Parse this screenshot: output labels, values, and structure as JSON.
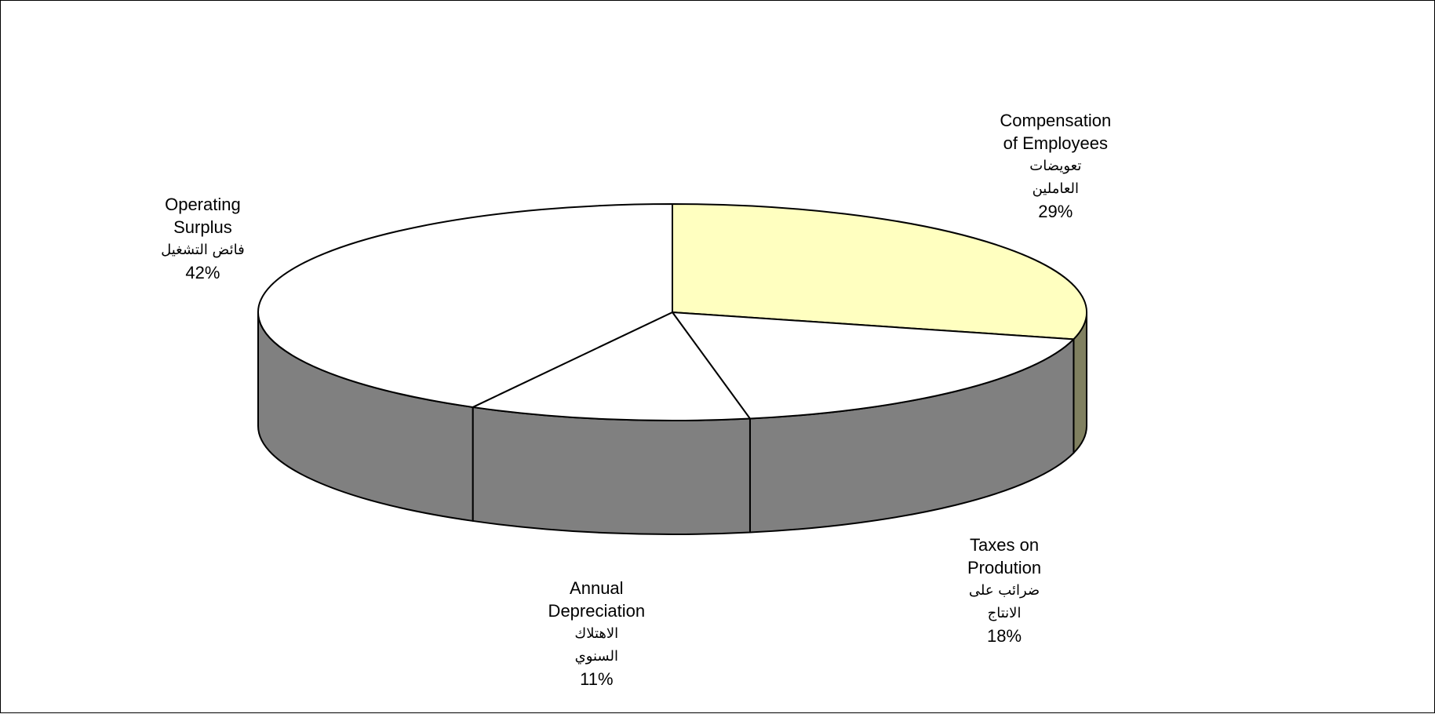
{
  "chart_data": {
    "type": "pie",
    "style": "3d",
    "title": "",
    "categories": [
      "Compensation of Employees",
      "Taxes on Prodution",
      "Annual Depreciation",
      "Operating Surplus"
    ],
    "values": [
      29,
      18,
      11,
      42
    ],
    "unit": "%",
    "slices": [
      {
        "name_en_lines": [
          "Compensation",
          "of Employees"
        ],
        "name_ar_lines": [
          "تعويضات",
          "العاملين"
        ],
        "value": 29,
        "value_label": "29%",
        "color": "#FFFFC0",
        "side_color": "#808060"
      },
      {
        "name_en_lines": [
          "Taxes on",
          "Prodution"
        ],
        "name_ar_lines": [
          "ضرائب على",
          "الانتاج"
        ],
        "value": 18,
        "value_label": "18%",
        "color": "#FFFFFF",
        "side_color": "#808080"
      },
      {
        "name_en_lines": [
          "Annual",
          "Depreciation"
        ],
        "name_ar_lines": [
          "الاهتلاك",
          "السنوي"
        ],
        "value": 11,
        "value_label": "11%",
        "color": "#FFFFFF",
        "side_color": "#808080"
      },
      {
        "name_en_lines": [
          "Operating",
          "Surplus"
        ],
        "name_ar_lines": [
          "فائض التشغيل"
        ],
        "value": 42,
        "value_label": "42%",
        "color": "#FFFFFF",
        "side_color": "#808080"
      }
    ],
    "legend": "none",
    "labels_position": "outside"
  }
}
